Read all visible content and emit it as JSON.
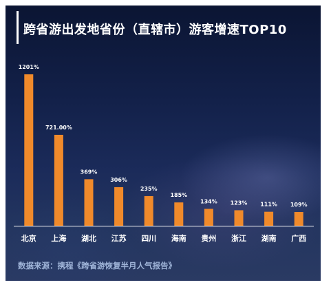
{
  "title": "跨省游出发地省份（直辖市）游客增速TOP10",
  "source": "数据来源：携程《跨省游恢复半月人气报告》",
  "colors": {
    "bar": "#f08a2b",
    "axis": "#ffffff",
    "text": "#ffffff",
    "source": "#9fb4d8"
  },
  "chart_data": {
    "type": "bar",
    "title": "跨省游出发地省份（直辖市）游客增速TOP10",
    "xlabel": "",
    "ylabel": "",
    "grid": false,
    "legend": "none",
    "ylim": [
      0,
      1300
    ],
    "categories": [
      "北京",
      "上海",
      "湖北",
      "江苏",
      "四川",
      "海南",
      "贵州",
      "浙江",
      "湖南",
      "广西"
    ],
    "values": [
      1201,
      721,
      369,
      306,
      235,
      185,
      134,
      123,
      111,
      109
    ],
    "data_labels": [
      "1201%",
      "721.00%",
      "369%",
      "306%",
      "235%",
      "185%",
      "134%",
      "123%",
      "111%",
      "109%"
    ]
  }
}
